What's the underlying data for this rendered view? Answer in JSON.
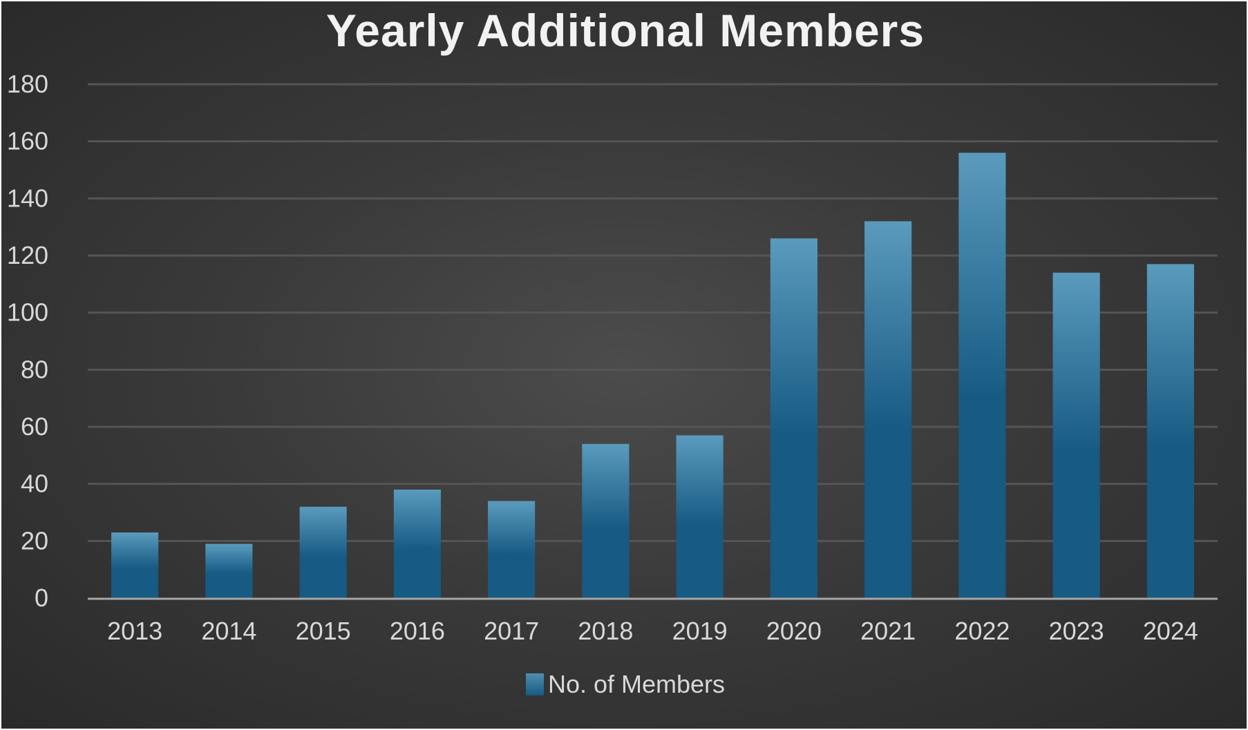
{
  "chart_data": {
    "type": "bar",
    "title": "Yearly Additional Members",
    "categories": [
      "2013",
      "2014",
      "2015",
      "2016",
      "2017",
      "2018",
      "2019",
      "2020",
      "2021",
      "2022",
      "2023",
      "2024"
    ],
    "series": [
      {
        "name": "No. of Members",
        "values": [
          23,
          19,
          32,
          38,
          34,
          54,
          57,
          126,
          132,
          156,
          114,
          117
        ]
      }
    ],
    "ylim": [
      0,
      180
    ],
    "yticks": [
      0,
      20,
      40,
      60,
      80,
      100,
      120,
      140,
      160,
      180
    ],
    "ytick_labels": [
      "0",
      "20",
      "40",
      "60",
      "80",
      "100",
      "120",
      "140",
      "160",
      "180"
    ],
    "grid": true,
    "legend_position": "bottom",
    "colors": {
      "bar_top": "#5a9bbd",
      "bar_bottom": "#175a83",
      "gridline": "#555555",
      "axis": "#a6a6a6",
      "background": "#3a3a3a",
      "text": "#d9d9d9"
    }
  }
}
